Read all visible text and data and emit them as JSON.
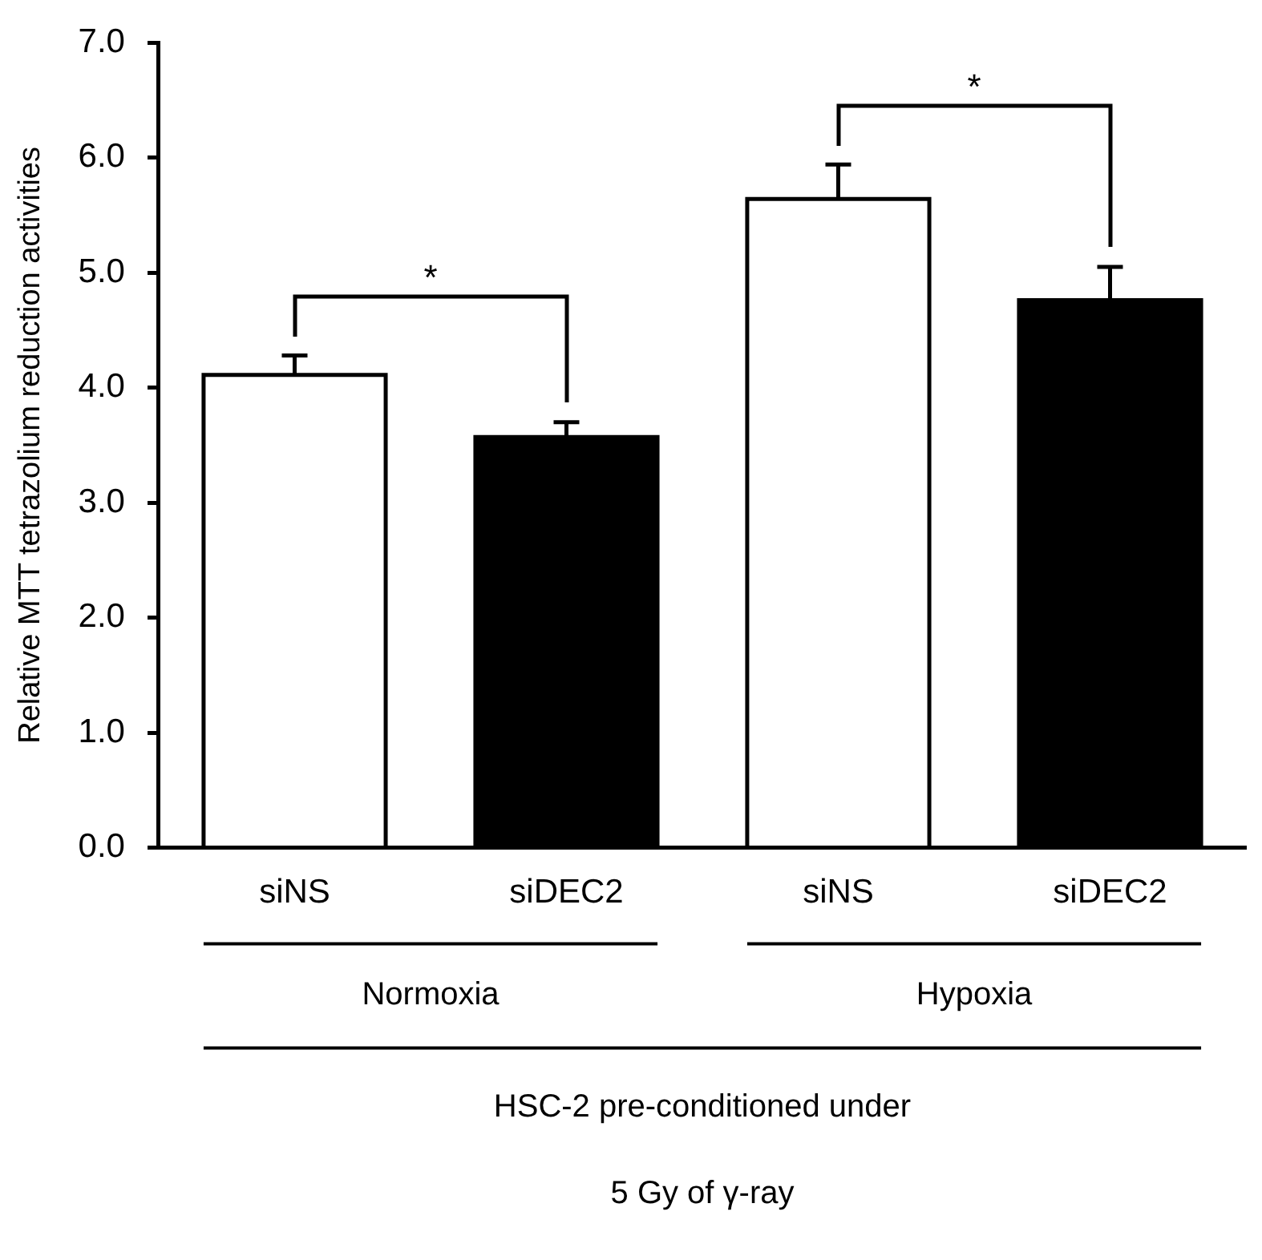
{
  "chart_data": {
    "type": "bar",
    "ylabel": "Relative MTT tetrazolium reduction activities",
    "xlabel": "HSC-2 pre-conditioned under\n5 Gy of γ-ray",
    "categories": [
      "siNS",
      "siDEC2",
      "siNS",
      "siDEC2"
    ],
    "values": [
      4.11,
      3.57,
      5.64,
      4.76
    ],
    "colors": [
      "#ffffff",
      "#000000",
      "#ffffff",
      "#000000"
    ],
    "errors": [
      0.17,
      0.13,
      0.3,
      0.29
    ],
    "ylim": [
      0,
      7
    ],
    "yticks": [
      {
        "value": 0,
        "label": "0.0"
      },
      {
        "value": 1,
        "label": "1.0"
      },
      {
        "value": 2,
        "label": "2.0"
      },
      {
        "value": 3,
        "label": "3.0"
      },
      {
        "value": 4,
        "label": "4.0"
      },
      {
        "value": 5,
        "label": "5.0"
      },
      {
        "value": 6,
        "label": "6.0"
      },
      {
        "value": 7,
        "label": "7.0"
      }
    ],
    "annotations": [
      "*",
      "*",
      "Normoxia",
      "Hypoxia"
    ],
    "grid": false,
    "legend": false
  }
}
